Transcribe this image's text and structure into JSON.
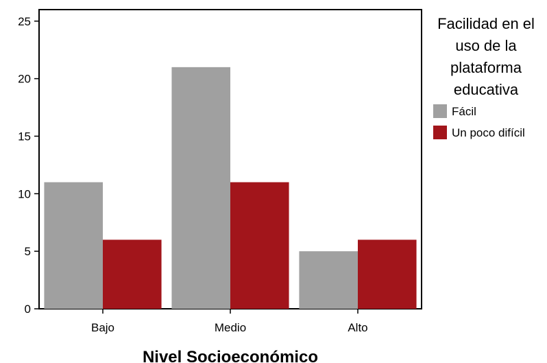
{
  "chart_data": {
    "type": "bar",
    "categories": [
      "Bajo",
      "Medio",
      "Alto"
    ],
    "series": [
      {
        "name": "Fácil",
        "values": [
          11,
          21,
          5
        ],
        "color": "#a0a0a0"
      },
      {
        "name": "Un poco difícil",
        "values": [
          6,
          11,
          6
        ],
        "color": "#a2151b"
      }
    ],
    "y_ticks": [
      "0",
      "5",
      "10",
      "15",
      "20",
      "25"
    ],
    "ylim": [
      0,
      26
    ],
    "xlabel": "Nivel Socioeconómico",
    "ylabel": "",
    "legend": {
      "title_lines": [
        "Facilidad en el",
        "uso de la",
        "plataforma",
        "educativa"
      ],
      "placement": "right"
    },
    "grid": false
  }
}
